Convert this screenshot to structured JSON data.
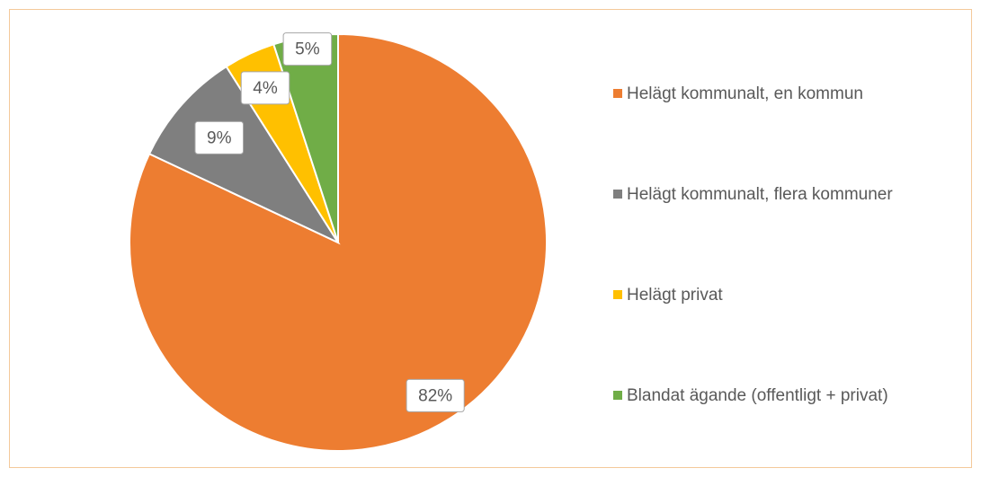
{
  "chart_data": {
    "type": "pie",
    "categories": [
      "Helägt kommunalt, en kommun",
      "Helägt kommunalt, flera kommuner",
      "Helägt privat",
      "Blandat ägande (offentligt + privat)"
    ],
    "values": [
      82,
      9,
      4,
      5
    ],
    "value_labels": [
      "82%",
      "9%",
      "4%",
      "5%"
    ],
    "colors": [
      "#ed7d31",
      "#7f7f7f",
      "#ffc000",
      "#70ad47"
    ],
    "legend": "right"
  }
}
